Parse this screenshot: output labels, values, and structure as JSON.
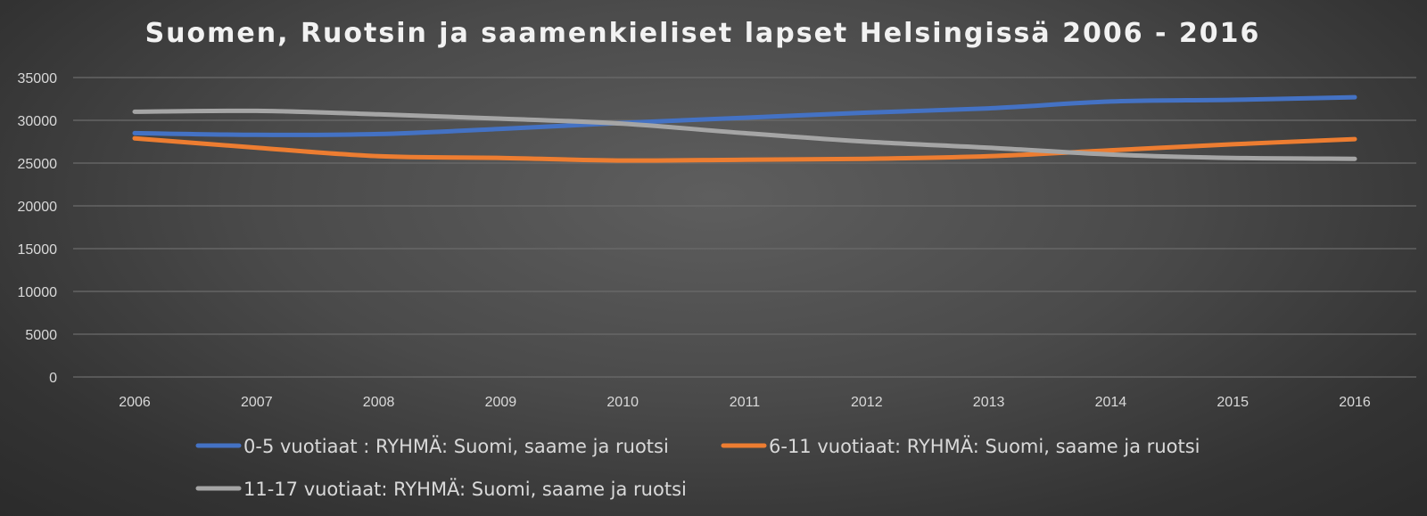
{
  "chart_data": {
    "type": "line",
    "title": "Suomen, Ruotsin ja saamenkieliset lapset Helsingissä 2006 - 2016",
    "xlabel": "",
    "ylabel": "",
    "categories": [
      "2006",
      "2007",
      "2008",
      "2009",
      "2010",
      "2011",
      "2012",
      "2013",
      "2014",
      "2015",
      "2016"
    ],
    "ylim": [
      0,
      35000
    ],
    "yticks": [
      "0",
      "5000",
      "10000",
      "15000",
      "20000",
      "25000",
      "30000",
      "35000"
    ],
    "grid": true,
    "legend_position": "bottom",
    "series": [
      {
        "name": "0-5 vuotiaat : RYHMÄ: Suomi, saame ja ruotsi",
        "color": "#4472c4",
        "values": [
          28500,
          28300,
          28400,
          29000,
          29700,
          30300,
          30900,
          31400,
          32200,
          32400,
          32700
        ]
      },
      {
        "name": "6-11 vuotiaat: RYHMÄ: Suomi, saame ja ruotsi",
        "color": "#ed7d31",
        "values": [
          27900,
          26800,
          25800,
          25600,
          25300,
          25400,
          25500,
          25800,
          26500,
          27200,
          27800
        ]
      },
      {
        "name": "11-17 vuotiaat: RYHMÄ: Suomi, saame ja ruotsi",
        "color": "#a5a5a5",
        "values": [
          31000,
          31100,
          30700,
          30200,
          29600,
          28500,
          27500,
          26800,
          26000,
          25600,
          25500
        ]
      }
    ]
  }
}
